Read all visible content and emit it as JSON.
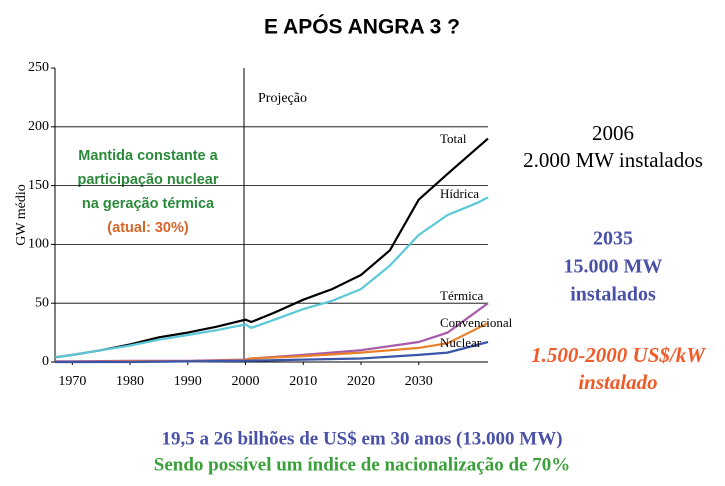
{
  "chart_data": {
    "type": "line",
    "title": "E APÓS ANGRA 3 ?",
    "y_label": "GW médio",
    "xlim": [
      1967,
      2042
    ],
    "xticks": [
      1970,
      1980,
      1990,
      2000,
      2010,
      2020,
      2030
    ],
    "ylim": [
      0,
      250
    ],
    "yticks": [
      0,
      50,
      100,
      150,
      200,
      250
    ],
    "grid": true,
    "series": [
      {
        "name": "Total",
        "color": "#000000",
        "x": [
          1967,
          1970,
          1975,
          1980,
          1985,
          1990,
          1995,
          2000,
          2001,
          2005,
          2010,
          2015,
          2020,
          2025,
          2030,
          2035,
          2042
        ],
        "values": [
          4,
          6,
          10,
          15,
          21,
          25,
          30,
          36,
          34,
          42,
          53,
          62,
          74,
          95,
          138,
          160,
          190
        ]
      },
      {
        "name": "Hídrica",
        "color": "#5bc8d8",
        "x": [
          1967,
          1970,
          1975,
          1980,
          1985,
          1990,
          1995,
          2000,
          2001,
          2005,
          2010,
          2015,
          2020,
          2025,
          2030,
          2035,
          2040,
          2042
        ],
        "values": [
          4,
          6,
          10,
          14,
          19,
          23,
          27,
          32,
          29,
          36,
          45,
          52,
          62,
          82,
          108,
          125,
          135,
          140
        ]
      },
      {
        "name": "Térmica",
        "color": "#a75ba8",
        "x": [
          1967,
          1970,
          1980,
          1990,
          2000,
          2001,
          2010,
          2020,
          2030,
          2035,
          2042
        ],
        "values": [
          0.5,
          0.5,
          1,
          1,
          2,
          3,
          6,
          10,
          17,
          25,
          50
        ]
      },
      {
        "name": "Convencional",
        "color": "#e8802a",
        "x": [
          1967,
          1970,
          1980,
          1990,
          2000,
          2001,
          2010,
          2020,
          2030,
          2035,
          2042
        ],
        "values": [
          0,
          0,
          0.5,
          0.5,
          1.5,
          3,
          5,
          8,
          12,
          16,
          33
        ]
      },
      {
        "name": "Nuclear",
        "color": "#3a55a8",
        "x": [
          1967,
          1970,
          1980,
          1990,
          2000,
          2010,
          2020,
          2030,
          2035,
          2042
        ],
        "values": [
          0,
          0,
          0,
          0.5,
          1,
          2,
          3,
          6,
          8,
          17
        ]
      }
    ],
    "annotations": [
      "Projeção",
      "Mantida constante a",
      "participação nuclear",
      "na geração térmica",
      "(atual: 30%)",
      "2006",
      "2.000 MW instalados",
      "2035",
      "15.000 MW",
      "instalados",
      "1.500-2000 US$/kW",
      "instalado",
      "19,5 a 26 bilhões de US$ em 30 anos (13.000 MW)",
      "Sendo possível um índice de nacionalização de 70%"
    ]
  }
}
